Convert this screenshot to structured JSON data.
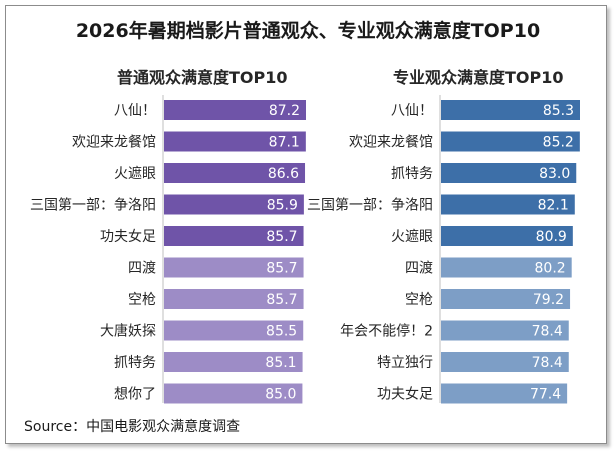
{
  "title": "2026年暑期档影片普通观众、专业观众满意度TOP10",
  "source": "Source：中国电影观众满意度调查",
  "colors": {
    "left_dark": "#6f54a8",
    "left_light": "#9d8cc6",
    "right_dark": "#3d6fa8",
    "right_light": "#7d9ec6"
  },
  "chart_data": [
    {
      "type": "bar",
      "orientation": "horizontal",
      "title": "普通观众满意度TOP10",
      "categories": [
        "八仙！",
        "欢迎来龙餐馆",
        "火遮眼",
        "三国第一部：争洛阳",
        "功夫女足",
        "四渡",
        "空枪",
        "大唐妖探",
        "抓特务",
        "想你了"
      ],
      "values": [
        87.2,
        87.1,
        86.6,
        85.9,
        85.7,
        85.7,
        85.7,
        85.5,
        85.1,
        85.0
      ],
      "value_labels": [
        "87.2",
        "87.1",
        "86.6",
        "85.9",
        "85.7",
        "85.7",
        "85.7",
        "85.5",
        "85.1",
        "85.0"
      ],
      "top5_color": "#6f54a8",
      "rest_color": "#9d8cc6"
    },
    {
      "type": "bar",
      "orientation": "horizontal",
      "title": "专业观众满意度TOP10",
      "categories": [
        "八仙！",
        "欢迎来龙餐馆",
        "抓特务",
        "三国第一部：争洛阳",
        "火遮眼",
        "四渡",
        "空枪",
        "年会不能停！2",
        "特立独行",
        "功夫女足"
      ],
      "values": [
        85.3,
        85.2,
        83.0,
        82.1,
        80.9,
        80.2,
        79.2,
        78.4,
        78.4,
        77.4
      ],
      "value_labels": [
        "85.3",
        "85.2",
        "83.0",
        "82.1",
        "80.9",
        "80.2",
        "79.2",
        "78.4",
        "78.4",
        "77.4"
      ],
      "top5_color": "#3d6fa8",
      "rest_color": "#7d9ec6"
    }
  ]
}
